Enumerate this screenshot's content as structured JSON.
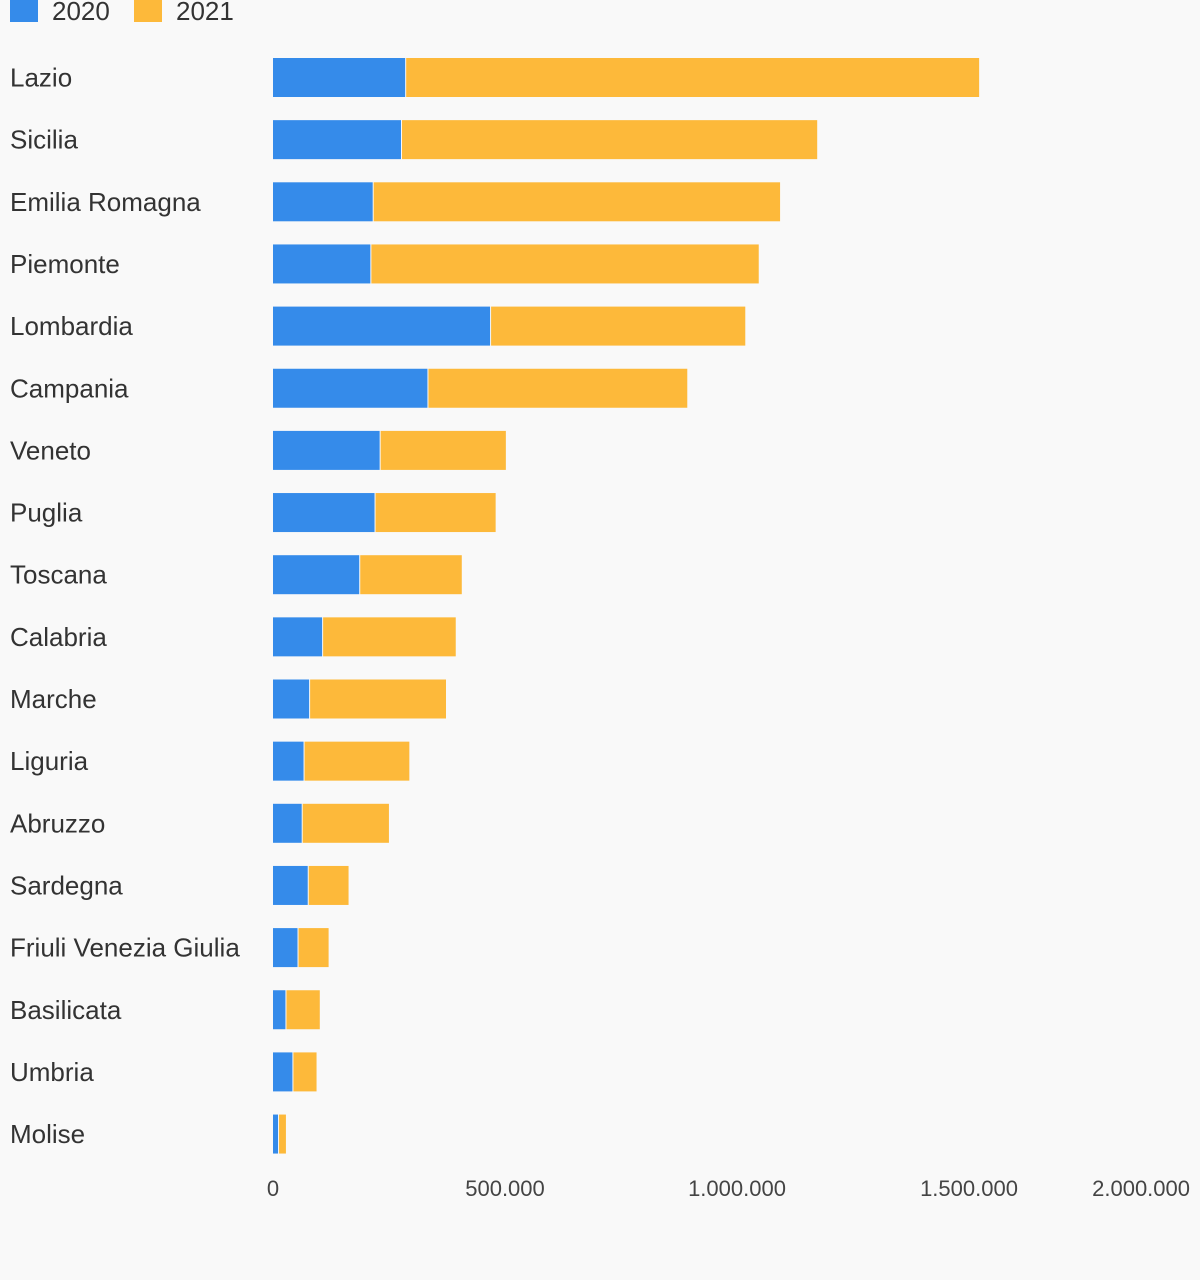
{
  "chart_data": {
    "type": "bar",
    "orientation": "horizontal",
    "stacked": true,
    "grid": false,
    "legend_position": "top-left",
    "categories": [
      "Lazio",
      "Sicilia",
      "Emilia Romagna",
      "Piemonte",
      "Lombardia",
      "Campania",
      "Veneto",
      "Puglia",
      "Toscana",
      "Calabria",
      "Marche",
      "Liguria",
      "Abruzzo",
      "Sardegna",
      "Friuli Venezia Giulia",
      "Basilicata",
      "Umbria",
      "Molise"
    ],
    "series": [
      {
        "name": "2020",
        "color": "#358bea",
        "values": [
          287000,
          278000,
          217000,
          212000,
          470000,
          335000,
          232000,
          221000,
          188000,
          108000,
          80000,
          68000,
          64000,
          77000,
          55000,
          29000,
          44000,
          13000
        ]
      },
      {
        "name": "2021",
        "color": "#fdb93a",
        "values": [
          1237000,
          897000,
          878000,
          837000,
          550000,
          560000,
          272000,
          261000,
          221000,
          288000,
          295000,
          228000,
          188000,
          88000,
          67000,
          74000,
          52000,
          17000
        ]
      }
    ],
    "xlim": [
      0,
      2000000
    ],
    "x_tick_labels": [
      "0",
      "500.000",
      "1.000.000",
      "1.500.000",
      "2.000.000"
    ],
    "title": "",
    "xlabel": "",
    "ylabel": ""
  }
}
